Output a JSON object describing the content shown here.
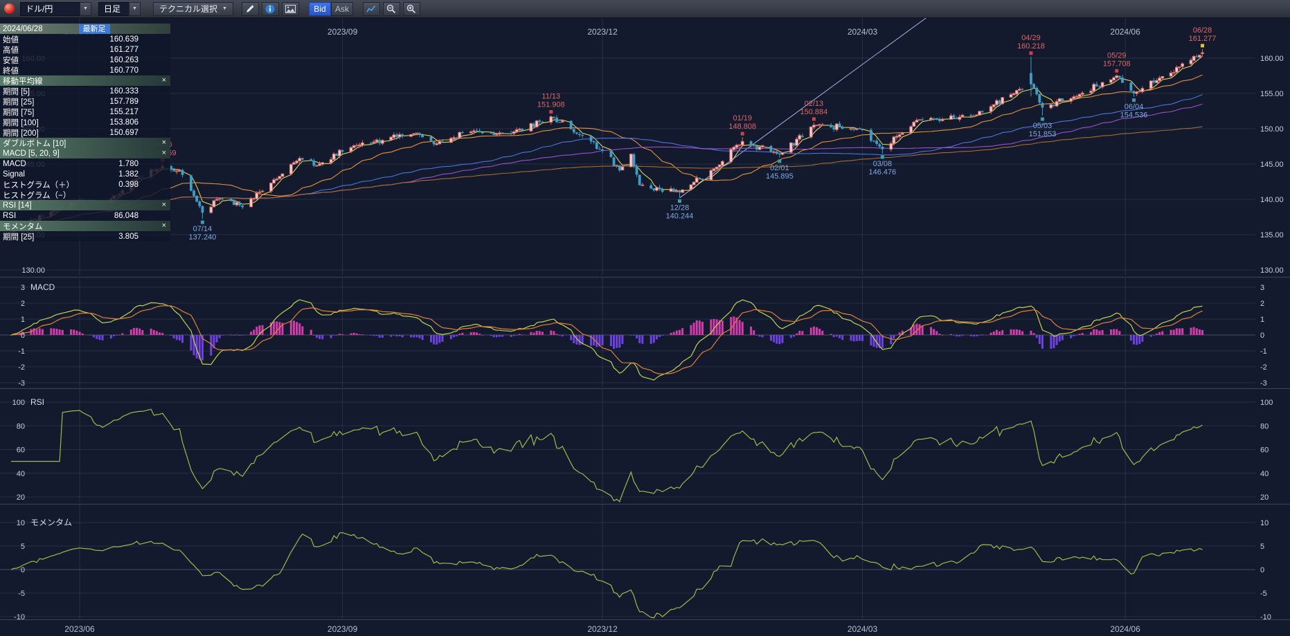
{
  "toolbar": {
    "symbol": "ドル/円",
    "timeframe": "日足",
    "technical_select": "テクニカル選択",
    "bid": "Bid",
    "ask": "Ask",
    "dropdown_arrow": "▼"
  },
  "legend": {
    "close_glyph": "×",
    "rows": [
      {
        "type": "date",
        "label": "2024/06/28",
        "badge": "最新足"
      },
      {
        "type": "kv",
        "label": "始値",
        "value": "160.639"
      },
      {
        "type": "kv",
        "label": "高値",
        "value": "161.277"
      },
      {
        "type": "kv",
        "label": "安値",
        "value": "160.263"
      },
      {
        "type": "kv",
        "label": "終値",
        "value": "160.770"
      },
      {
        "type": "header",
        "label": "移動平均線"
      },
      {
        "type": "kv",
        "label": "期間 [5]",
        "value": "160.333"
      },
      {
        "type": "kv",
        "label": "期間 [25]",
        "value": "157.789"
      },
      {
        "type": "kv",
        "label": "期間 [75]",
        "value": "155.217"
      },
      {
        "type": "kv",
        "label": "期間 [100]",
        "value": "153.806"
      },
      {
        "type": "kv",
        "label": "期間 [200]",
        "value": "150.697"
      },
      {
        "type": "header",
        "label": "ダブルボトム [10]"
      },
      {
        "type": "header",
        "label": "MACD [5, 20, 9]"
      },
      {
        "type": "kv",
        "label": "MACD",
        "value": "1.780"
      },
      {
        "type": "kv",
        "label": "Signal",
        "value": "1.382"
      },
      {
        "type": "kv",
        "label": "ヒストグラム（＋）",
        "value": "0.398"
      },
      {
        "type": "kv",
        "label": "ヒストグラム（−）",
        "value": ""
      },
      {
        "type": "header",
        "label": "RSI [14]"
      },
      {
        "type": "kv",
        "label": "RSI",
        "value": "86.048"
      },
      {
        "type": "header",
        "label": "モメンタム"
      },
      {
        "type": "kv",
        "label": "期間 [25]",
        "value": "3.805"
      }
    ]
  },
  "chart_data": {
    "type": "candlestick",
    "symbol": "ドル/円",
    "timeframe": "日足",
    "time_axis": {
      "labels": [
        "2023/06",
        "2023/09",
        "2023/12",
        "2024/03",
        "2024/06"
      ],
      "gridline_dates": [
        "2023-06-01",
        "2023-09-01",
        "2023-12-01",
        "2024-03-01",
        "2024-06-01"
      ]
    },
    "price_axis": {
      "tick_labels": [
        "160.00",
        "155.00",
        "150.00",
        "145.00",
        "140.00",
        "135.00",
        "130.00"
      ],
      "tick_values": [
        160,
        155,
        150,
        145,
        140,
        135,
        130
      ]
    },
    "latest": {
      "date": "2024/06/28",
      "open": 160.639,
      "high": 161.277,
      "low": 160.263,
      "close": 160.77
    },
    "price_anchors": [
      {
        "date": "2023-05-08",
        "close": 135.4
      },
      {
        "date": "2023-05-30",
        "close": 139.8
      },
      {
        "date": "2023-06-09",
        "close": 139.4
      },
      {
        "date": "2023-06-22",
        "close": 143.1
      },
      {
        "date": "2023-06-30",
        "close": 144.7
      },
      {
        "date": "2023-07-06",
        "close": 144.1
      },
      {
        "date": "2023-07-14",
        "close": 138.1
      },
      {
        "date": "2023-07-20",
        "close": 140.1
      },
      {
        "date": "2023-07-28",
        "close": 138.9
      },
      {
        "date": "2023-08-07",
        "close": 142.3
      },
      {
        "date": "2023-08-17",
        "close": 145.8
      },
      {
        "date": "2023-08-23",
        "close": 144.8
      },
      {
        "date": "2023-09-05",
        "close": 147.6
      },
      {
        "date": "2023-09-27",
        "close": 149.4
      },
      {
        "date": "2023-10-03",
        "close": 147.8
      },
      {
        "date": "2023-10-17",
        "close": 149.7
      },
      {
        "date": "2023-10-30",
        "close": 149.3
      },
      {
        "date": "2023-11-13",
        "close": 151.7
      },
      {
        "date": "2023-11-22",
        "close": 149.3
      },
      {
        "date": "2023-12-01",
        "close": 146.9
      },
      {
        "date": "2023-12-07",
        "close": 144.1
      },
      {
        "date": "2023-12-11",
        "close": 146.4
      },
      {
        "date": "2023-12-14",
        "close": 142.0
      },
      {
        "date": "2023-12-28",
        "close": 141.0
      },
      {
        "date": "2024-01-09",
        "close": 144.3
      },
      {
        "date": "2024-01-19",
        "close": 148.2
      },
      {
        "date": "2024-02-01",
        "close": 146.4
      },
      {
        "date": "2024-02-13",
        "close": 150.5
      },
      {
        "date": "2024-02-29",
        "close": 150.0
      },
      {
        "date": "2024-03-08",
        "close": 147.1
      },
      {
        "date": "2024-03-20",
        "close": 151.2
      },
      {
        "date": "2024-04-09",
        "close": 151.8
      },
      {
        "date": "2024-04-25",
        "close": 155.6
      },
      {
        "date": "2024-04-29",
        "close": 156.3
      },
      {
        "date": "2024-05-03",
        "close": 153.0
      },
      {
        "date": "2024-05-15",
        "close": 154.6
      },
      {
        "date": "2024-05-29",
        "close": 157.5
      },
      {
        "date": "2024-06-04",
        "close": 155.0
      },
      {
        "date": "2024-06-14",
        "close": 157.4
      },
      {
        "date": "2024-06-21",
        "close": 159.2
      },
      {
        "date": "2024-06-28",
        "close": 160.77
      }
    ],
    "key_candles": {
      "2023-06-30": {
        "high": 145.069
      },
      "2023-07-14": {
        "low": 137.24
      },
      "2023-11-13": {
        "high": 151.908
      },
      "2023-12-28": {
        "low": 140.244
      },
      "2024-01-19": {
        "high": 148.808
      },
      "2024-02-01": {
        "low": 145.895
      },
      "2024-02-13": {
        "high": 150.884
      },
      "2024-03-08": {
        "low": 146.476
      },
      "2024-04-29": {
        "open": 157.9,
        "high": 160.218,
        "low": 154.6,
        "close": 156.3
      },
      "2024-05-03": {
        "low": 151.853
      },
      "2024-05-29": {
        "high": 157.708
      },
      "2024-06-04": {
        "low": 154.536
      },
      "2024-06-28": {
        "open": 160.639,
        "high": 161.277,
        "low": 160.263,
        "close": 160.77
      }
    },
    "annotations": [
      {
        "date_iso": "2023-06-30",
        "label_date": "06/30",
        "label_price": "145.069",
        "side": "high"
      },
      {
        "date_iso": "2023-07-14",
        "label_date": "07/14",
        "label_price": "137.240",
        "side": "low"
      },
      {
        "date_iso": "2023-11-13",
        "label_date": "11/13",
        "label_price": "151.908",
        "side": "high"
      },
      {
        "date_iso": "2023-12-28",
        "label_date": "12/28",
        "label_price": "140.244",
        "side": "low"
      },
      {
        "date_iso": "2024-01-19",
        "label_date": "01/19",
        "label_price": "148.808",
        "side": "high"
      },
      {
        "date_iso": "2024-02-01",
        "label_date": "02/01",
        "label_price": "145.895",
        "side": "low"
      },
      {
        "date_iso": "2024-02-13",
        "label_date": "02/13",
        "label_price": "150.884",
        "side": "high"
      },
      {
        "date_iso": "2024-03-08",
        "label_date": "03/08",
        "label_price": "146.476",
        "side": "low"
      },
      {
        "date_iso": "2024-04-29",
        "label_date": "04/29",
        "label_price": "160.218",
        "side": "high"
      },
      {
        "date_iso": "2024-05-03",
        "label_date": "05/03",
        "label_price": "151.853",
        "side": "low"
      },
      {
        "date_iso": "2024-05-29",
        "label_date": "05/29",
        "label_price": "157.708",
        "side": "high"
      },
      {
        "date_iso": "2024-06-04",
        "label_date": "06/04",
        "label_price": "154.536",
        "side": "low"
      },
      {
        "date_iso": "2024-06-28",
        "label_date": "06/28",
        "label_price": "161.277",
        "side": "high",
        "current": true
      }
    ],
    "trendline": {
      "from_date": "2023-12-28",
      "from_price": 140.2,
      "to_date": "2024-03-26",
      "to_price": 166.5
    },
    "moving_averages": [
      {
        "period": 5,
        "color": "#ddd45e"
      },
      {
        "period": 25,
        "color": "#e8923a"
      },
      {
        "period": 75,
        "color": "#4d74d8"
      },
      {
        "period": 100,
        "color": "#9a50cc"
      },
      {
        "period": 200,
        "color": "#a96a33"
      }
    ],
    "panels": {
      "macd": {
        "title": "MACD",
        "fast": 5,
        "slow": 20,
        "signal": 9,
        "ticks": [
          3,
          2,
          1,
          0,
          -1,
          -2,
          -3
        ],
        "line_color": "#c4d24c",
        "signal_color": "#e07f3a",
        "hist_pos_color": "#d23cab",
        "hist_neg_color": "#6e42dd"
      },
      "rsi": {
        "title": "RSI",
        "period": 14,
        "ticks": [
          100,
          80,
          60,
          40,
          20
        ],
        "color": "#9fba4a"
      },
      "momentum": {
        "title": "モメンタム",
        "period": 25,
        "ticks": [
          10,
          5,
          0,
          -5,
          -10
        ],
        "color": "#9fba4a"
      }
    },
    "colors": {
      "background": "#131a2e",
      "grid": "rgba(145,160,200,0.16)",
      "zero_line": "rgba(160,175,210,0.35)",
      "separator": "#394460",
      "axis_text": "#c9cfdf",
      "date_text": "#b7bfd2",
      "up_fill": "#ecd2d2",
      "up_stroke": "#d96a6a",
      "down": "#3f9ec6",
      "high_text": "#e06565",
      "low_text": "#7fa9e2",
      "high_marker": "#cc4444",
      "low_marker": "#3d9bb0",
      "current_marker": "#e6c235",
      "trendline": "#b3abe6"
    }
  }
}
